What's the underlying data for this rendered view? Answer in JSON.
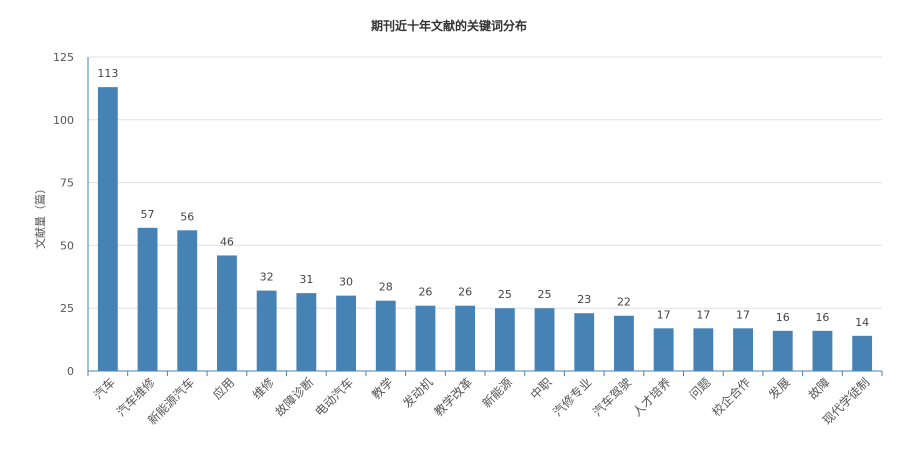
{
  "chart_data": {
    "type": "bar",
    "title": "期刊近十年文献的关键词分布",
    "xlabel": "",
    "ylabel": "文献量（篇）",
    "ylim": [
      0,
      125
    ],
    "yticks": [
      0,
      25,
      50,
      75,
      100,
      125
    ],
    "grid": true,
    "legend": "none",
    "bar_color": "#4682b4",
    "categories": [
      "汽车",
      "汽车维修",
      "新能源汽车",
      "应用",
      "维修",
      "故障诊断",
      "电动汽车",
      "教学",
      "发动机",
      "教学改革",
      "新能源",
      "中职",
      "汽修专业",
      "汽车驾驶",
      "人才培养",
      "问题",
      "校企合作",
      "发展",
      "故障",
      "现代学徒制"
    ],
    "values": [
      113,
      57,
      56,
      46,
      32,
      31,
      30,
      28,
      26,
      26,
      25,
      25,
      23,
      22,
      17,
      17,
      17,
      16,
      16,
      14
    ]
  }
}
